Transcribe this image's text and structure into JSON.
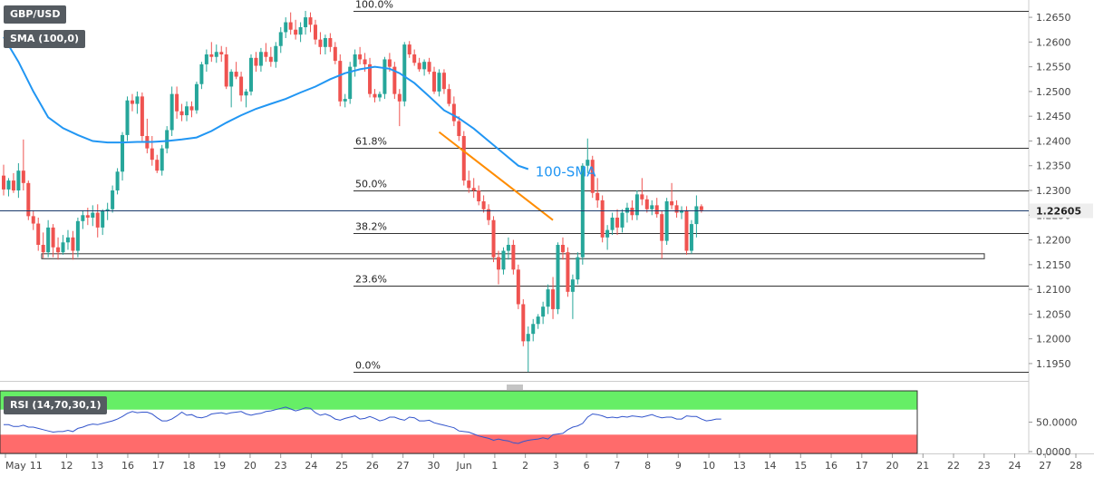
{
  "header": {
    "symbol": "GBP/USD",
    "indicator": "SMA (100,0)"
  },
  "rsi_panel": {
    "label": "RSI (14,70,30,1)",
    "overbought": 70,
    "oversold": 30,
    "ticks": [
      "50.0000",
      "0.0000"
    ]
  },
  "last_price": "1.22605",
  "colors": {
    "up": "#26a69a",
    "down": "#ef5350",
    "sma": "#2196f3",
    "trendline": "#ff8c00",
    "rsi_line": "#3355cc",
    "rsi_ob": "#66ee66",
    "rsi_os": "#ff6b6b",
    "price_tag": "#eeeeee"
  },
  "chart_data": {
    "type": "candlestick",
    "x_labels": [
      "May",
      "11",
      "12",
      "13",
      "16",
      "17",
      "18",
      "19",
      "20",
      "23",
      "24",
      "25",
      "26",
      "27",
      "30",
      "Jun",
      "1",
      "2",
      "3",
      "6",
      "7",
      "8",
      "9",
      "10",
      "13",
      "14",
      "15",
      "16",
      "17",
      "20",
      "21",
      "22",
      "23",
      "24",
      "27",
      "28"
    ],
    "y_ticks": [
      "1.2650",
      "1.2600",
      "1.2550",
      "1.2500",
      "1.2450",
      "1.2400",
      "1.2350",
      "1.2300",
      "1.2250",
      "1.2200",
      "1.2150",
      "1.2100",
      "1.2050",
      "1.2000",
      "1.1950"
    ],
    "ylim": [
      1.1915,
      1.2685
    ],
    "fibonacci": [
      {
        "label": "100.0%",
        "price": 1.2663
      },
      {
        "label": "61.8%",
        "price": 1.2386
      },
      {
        "label": "50.0%",
        "price": 1.23
      },
      {
        "label": "38.2%",
        "price": 1.2214
      },
      {
        "label": "23.6%",
        "price": 1.2108
      },
      {
        "label": "0.0%",
        "price": 1.1933
      }
    ],
    "support_zone": [
      1.2162,
      1.2172
    ],
    "sma_label": "100-SMA",
    "sma": [
      [
        0,
        1.261
      ],
      [
        3,
        1.256
      ],
      [
        6,
        1.25
      ],
      [
        9,
        1.2448
      ],
      [
        12,
        1.2426
      ],
      [
        15,
        1.2412
      ],
      [
        18,
        1.24
      ],
      [
        21,
        1.2397
      ],
      [
        24,
        1.2397
      ],
      [
        27,
        1.2398
      ],
      [
        30,
        1.2398
      ],
      [
        33,
        1.24
      ],
      [
        36,
        1.2403
      ],
      [
        39,
        1.2407
      ],
      [
        42,
        1.242
      ],
      [
        45,
        1.2437
      ],
      [
        48,
        1.2452
      ],
      [
        51,
        1.2465
      ],
      [
        54,
        1.2475
      ],
      [
        57,
        1.2485
      ],
      [
        60,
        1.2498
      ],
      [
        63,
        1.251
      ],
      [
        66,
        1.2525
      ],
      [
        69,
        1.2537
      ],
      [
        72,
        1.2545
      ],
      [
        75,
        1.255
      ],
      [
        78,
        1.2546
      ],
      [
        80,
        1.2537
      ],
      [
        83,
        1.2517
      ],
      [
        86,
        1.249
      ],
      [
        89,
        1.2462
      ],
      [
        92,
        1.2446
      ],
      [
        95,
        1.2425
      ],
      [
        98,
        1.24
      ],
      [
        101,
        1.2375
      ],
      [
        104,
        1.235
      ],
      [
        106,
        1.2343
      ]
    ],
    "trendline": [
      [
        88,
        1.2418
      ],
      [
        111,
        1.224
      ]
    ],
    "candles": [
      {
        "o": 1.233,
        "h": 1.2352,
        "l": 1.229,
        "c": 1.2302
      },
      {
        "o": 1.2302,
        "h": 1.2325,
        "l": 1.2288,
        "c": 1.232
      },
      {
        "o": 1.232,
        "h": 1.2335,
        "l": 1.2295,
        "c": 1.23
      },
      {
        "o": 1.23,
        "h": 1.2355,
        "l": 1.2285,
        "c": 1.234
      },
      {
        "o": 1.234,
        "h": 1.2403,
        "l": 1.23,
        "c": 1.2315
      },
      {
        "o": 1.2315,
        "h": 1.232,
        "l": 1.224,
        "c": 1.2248
      },
      {
        "o": 1.2248,
        "h": 1.226,
        "l": 1.222,
        "c": 1.2233
      },
      {
        "o": 1.2233,
        "h": 1.2245,
        "l": 1.2178,
        "c": 1.219
      },
      {
        "o": 1.219,
        "h": 1.2215,
        "l": 1.2163,
        "c": 1.2175
      },
      {
        "o": 1.2175,
        "h": 1.224,
        "l": 1.2165,
        "c": 1.2225
      },
      {
        "o": 1.2225,
        "h": 1.2232,
        "l": 1.2165,
        "c": 1.2185
      },
      {
        "o": 1.2185,
        "h": 1.2205,
        "l": 1.216,
        "c": 1.2175
      },
      {
        "o": 1.2175,
        "h": 1.221,
        "l": 1.217,
        "c": 1.2195
      },
      {
        "o": 1.2195,
        "h": 1.222,
        "l": 1.218,
        "c": 1.2205
      },
      {
        "o": 1.2205,
        "h": 1.2218,
        "l": 1.216,
        "c": 1.2178
      },
      {
        "o": 1.2178,
        "h": 1.2245,
        "l": 1.2165,
        "c": 1.2238
      },
      {
        "o": 1.2238,
        "h": 1.226,
        "l": 1.2222,
        "c": 1.225
      },
      {
        "o": 1.225,
        "h": 1.2265,
        "l": 1.223,
        "c": 1.2245
      },
      {
        "o": 1.2245,
        "h": 1.227,
        "l": 1.2228,
        "c": 1.2255
      },
      {
        "o": 1.2255,
        "h": 1.2272,
        "l": 1.2205,
        "c": 1.2225
      },
      {
        "o": 1.2225,
        "h": 1.2262,
        "l": 1.221,
        "c": 1.2258
      },
      {
        "o": 1.2258,
        "h": 1.2275,
        "l": 1.224,
        "c": 1.2262
      },
      {
        "o": 1.2262,
        "h": 1.231,
        "l": 1.2255,
        "c": 1.23
      },
      {
        "o": 1.23,
        "h": 1.2345,
        "l": 1.2292,
        "c": 1.2338
      },
      {
        "o": 1.2338,
        "h": 1.2418,
        "l": 1.232,
        "c": 1.2412
      },
      {
        "o": 1.2412,
        "h": 1.249,
        "l": 1.24,
        "c": 1.2482
      },
      {
        "o": 1.2482,
        "h": 1.2495,
        "l": 1.246,
        "c": 1.2475
      },
      {
        "o": 1.2475,
        "h": 1.25,
        "l": 1.2455,
        "c": 1.249
      },
      {
        "o": 1.249,
        "h": 1.2498,
        "l": 1.24,
        "c": 1.241
      },
      {
        "o": 1.241,
        "h": 1.2445,
        "l": 1.2375,
        "c": 1.2385
      },
      {
        "o": 1.2385,
        "h": 1.241,
        "l": 1.235,
        "c": 1.2362
      },
      {
        "o": 1.2362,
        "h": 1.2372,
        "l": 1.2335,
        "c": 1.234
      },
      {
        "o": 1.234,
        "h": 1.2392,
        "l": 1.233,
        "c": 1.2385
      },
      {
        "o": 1.2385,
        "h": 1.243,
        "l": 1.2375,
        "c": 1.2422
      },
      {
        "o": 1.2422,
        "h": 1.251,
        "l": 1.241,
        "c": 1.2495
      },
      {
        "o": 1.2495,
        "h": 1.251,
        "l": 1.2445,
        "c": 1.246
      },
      {
        "o": 1.246,
        "h": 1.2475,
        "l": 1.244,
        "c": 1.2452
      },
      {
        "o": 1.2452,
        "h": 1.248,
        "l": 1.244,
        "c": 1.247
      },
      {
        "o": 1.247,
        "h": 1.248,
        "l": 1.2448,
        "c": 1.2462
      },
      {
        "o": 1.2462,
        "h": 1.252,
        "l": 1.2455,
        "c": 1.2515
      },
      {
        "o": 1.2515,
        "h": 1.256,
        "l": 1.2505,
        "c": 1.2555
      },
      {
        "o": 1.2555,
        "h": 1.2585,
        "l": 1.254,
        "c": 1.2575
      },
      {
        "o": 1.2575,
        "h": 1.26,
        "l": 1.256,
        "c": 1.257
      },
      {
        "o": 1.257,
        "h": 1.2595,
        "l": 1.2558,
        "c": 1.258
      },
      {
        "o": 1.258,
        "h": 1.2592,
        "l": 1.256,
        "c": 1.2575
      },
      {
        "o": 1.2575,
        "h": 1.259,
        "l": 1.2505,
        "c": 1.251
      },
      {
        "o": 1.251,
        "h": 1.2545,
        "l": 1.2468,
        "c": 1.254
      },
      {
        "o": 1.254,
        "h": 1.256,
        "l": 1.2525,
        "c": 1.253
      },
      {
        "o": 1.253,
        "h": 1.254,
        "l": 1.248,
        "c": 1.2492
      },
      {
        "o": 1.2492,
        "h": 1.2505,
        "l": 1.2468,
        "c": 1.25
      },
      {
        "o": 1.25,
        "h": 1.2575,
        "l": 1.2492,
        "c": 1.2568
      },
      {
        "o": 1.2568,
        "h": 1.258,
        "l": 1.254,
        "c": 1.2552
      },
      {
        "o": 1.2552,
        "h": 1.2588,
        "l": 1.254,
        "c": 1.258
      },
      {
        "o": 1.258,
        "h": 1.2598,
        "l": 1.256,
        "c": 1.257
      },
      {
        "o": 1.257,
        "h": 1.259,
        "l": 1.255,
        "c": 1.256
      },
      {
        "o": 1.256,
        "h": 1.26,
        "l": 1.2548,
        "c": 1.2592
      },
      {
        "o": 1.2592,
        "h": 1.263,
        "l": 1.2578,
        "c": 1.262
      },
      {
        "o": 1.262,
        "h": 1.265,
        "l": 1.2608,
        "c": 1.264
      },
      {
        "o": 1.264,
        "h": 1.266,
        "l": 1.2615,
        "c": 1.2625
      },
      {
        "o": 1.2625,
        "h": 1.2645,
        "l": 1.2605,
        "c": 1.2615
      },
      {
        "o": 1.2615,
        "h": 1.264,
        "l": 1.26,
        "c": 1.263
      },
      {
        "o": 1.263,
        "h": 1.2663,
        "l": 1.2615,
        "c": 1.265
      },
      {
        "o": 1.265,
        "h": 1.266,
        "l": 1.262,
        "c": 1.2635
      },
      {
        "o": 1.2635,
        "h": 1.2645,
        "l": 1.2595,
        "c": 1.2605
      },
      {
        "o": 1.2605,
        "h": 1.262,
        "l": 1.2575,
        "c": 1.259
      },
      {
        "o": 1.259,
        "h": 1.2615,
        "l": 1.2575,
        "c": 1.2608
      },
      {
        "o": 1.2608,
        "h": 1.2618,
        "l": 1.258,
        "c": 1.259
      },
      {
        "o": 1.259,
        "h": 1.26,
        "l": 1.2555,
        "c": 1.2562
      },
      {
        "o": 1.2562,
        "h": 1.2575,
        "l": 1.247,
        "c": 1.248
      },
      {
        "o": 1.248,
        "h": 1.2495,
        "l": 1.2468,
        "c": 1.2485
      },
      {
        "o": 1.2485,
        "h": 1.256,
        "l": 1.2475,
        "c": 1.255
      },
      {
        "o": 1.255,
        "h": 1.2585,
        "l": 1.253,
        "c": 1.2575
      },
      {
        "o": 1.2575,
        "h": 1.259,
        "l": 1.2555,
        "c": 1.2565
      },
      {
        "o": 1.2565,
        "h": 1.2578,
        "l": 1.254,
        "c": 1.2555
      },
      {
        "o": 1.2555,
        "h": 1.2568,
        "l": 1.2488,
        "c": 1.2495
      },
      {
        "o": 1.2495,
        "h": 1.2505,
        "l": 1.2478,
        "c": 1.2488
      },
      {
        "o": 1.2488,
        "h": 1.25,
        "l": 1.248,
        "c": 1.2495
      },
      {
        "o": 1.2495,
        "h": 1.257,
        "l": 1.2485,
        "c": 1.2565
      },
      {
        "o": 1.2565,
        "h": 1.2578,
        "l": 1.254,
        "c": 1.255
      },
      {
        "o": 1.255,
        "h": 1.256,
        "l": 1.2485,
        "c": 1.2495
      },
      {
        "o": 1.2495,
        "h": 1.2505,
        "l": 1.243,
        "c": 1.248
      },
      {
        "o": 1.248,
        "h": 1.26,
        "l": 1.247,
        "c": 1.2595
      },
      {
        "o": 1.2595,
        "h": 1.2602,
        "l": 1.2568,
        "c": 1.2575
      },
      {
        "o": 1.2575,
        "h": 1.2585,
        "l": 1.2552,
        "c": 1.2558
      },
      {
        "o": 1.2558,
        "h": 1.2568,
        "l": 1.254,
        "c": 1.2545
      },
      {
        "o": 1.2545,
        "h": 1.2565,
        "l": 1.2532,
        "c": 1.256
      },
      {
        "o": 1.256,
        "h": 1.2568,
        "l": 1.2535,
        "c": 1.254
      },
      {
        "o": 1.254,
        "h": 1.255,
        "l": 1.2495,
        "c": 1.25
      },
      {
        "o": 1.25,
        "h": 1.2545,
        "l": 1.249,
        "c": 1.2538
      },
      {
        "o": 1.2538,
        "h": 1.2545,
        "l": 1.2495,
        "c": 1.2505
      },
      {
        "o": 1.2505,
        "h": 1.2515,
        "l": 1.247,
        "c": 1.2475
      },
      {
        "o": 1.2475,
        "h": 1.249,
        "l": 1.243,
        "c": 1.244
      },
      {
        "o": 1.244,
        "h": 1.245,
        "l": 1.24,
        "c": 1.241
      },
      {
        "o": 1.241,
        "h": 1.242,
        "l": 1.231,
        "c": 1.232
      },
      {
        "o": 1.232,
        "h": 1.234,
        "l": 1.2295,
        "c": 1.2305
      },
      {
        "o": 1.2305,
        "h": 1.2325,
        "l": 1.2285,
        "c": 1.23
      },
      {
        "o": 1.23,
        "h": 1.231,
        "l": 1.227,
        "c": 1.2278
      },
      {
        "o": 1.2278,
        "h": 1.229,
        "l": 1.2255,
        "c": 1.2262
      },
      {
        "o": 1.2262,
        "h": 1.2272,
        "l": 1.223,
        "c": 1.224
      },
      {
        "o": 1.224,
        "h": 1.2248,
        "l": 1.2155,
        "c": 1.2165
      },
      {
        "o": 1.2165,
        "h": 1.2178,
        "l": 1.211,
        "c": 1.214
      },
      {
        "o": 1.214,
        "h": 1.2185,
        "l": 1.213,
        "c": 1.2178
      },
      {
        "o": 1.2178,
        "h": 1.2205,
        "l": 1.216,
        "c": 1.219
      },
      {
        "o": 1.219,
        "h": 1.22,
        "l": 1.213,
        "c": 1.214
      },
      {
        "o": 1.214,
        "h": 1.215,
        "l": 1.206,
        "c": 1.207
      },
      {
        "o": 1.207,
        "h": 1.208,
        "l": 1.1985,
        "c": 1.1995
      },
      {
        "o": 1.1995,
        "h": 1.2025,
        "l": 1.1933,
        "c": 1.201
      },
      {
        "o": 1.201,
        "h": 1.204,
        "l": 1.1995,
        "c": 1.203
      },
      {
        "o": 1.203,
        "h": 1.205,
        "l": 1.202,
        "c": 1.2045
      },
      {
        "o": 1.2045,
        "h": 1.2075,
        "l": 1.203,
        "c": 1.2065
      },
      {
        "o": 1.2065,
        "h": 1.211,
        "l": 1.205,
        "c": 1.21
      },
      {
        "o": 1.21,
        "h": 1.2125,
        "l": 1.204,
        "c": 1.206
      },
      {
        "o": 1.206,
        "h": 1.2195,
        "l": 1.205,
        "c": 1.219
      },
      {
        "o": 1.219,
        "h": 1.2205,
        "l": 1.216,
        "c": 1.2175
      },
      {
        "o": 1.2175,
        "h": 1.2185,
        "l": 1.2085,
        "c": 1.2095
      },
      {
        "o": 1.2095,
        "h": 1.213,
        "l": 1.204,
        "c": 1.212
      },
      {
        "o": 1.212,
        "h": 1.2175,
        "l": 1.211,
        "c": 1.2165
      },
      {
        "o": 1.2165,
        "h": 1.2355,
        "l": 1.215,
        "c": 1.235
      },
      {
        "o": 1.235,
        "h": 1.2405,
        "l": 1.2335,
        "c": 1.2362
      },
      {
        "o": 1.2362,
        "h": 1.237,
        "l": 1.2285,
        "c": 1.2295
      },
      {
        "o": 1.2295,
        "h": 1.2325,
        "l": 1.2265,
        "c": 1.228
      },
      {
        "o": 1.228,
        "h": 1.229,
        "l": 1.2195,
        "c": 1.2205
      },
      {
        "o": 1.2205,
        "h": 1.223,
        "l": 1.218,
        "c": 1.222
      },
      {
        "o": 1.222,
        "h": 1.2255,
        "l": 1.221,
        "c": 1.2245
      },
      {
        "o": 1.2245,
        "h": 1.2262,
        "l": 1.221,
        "c": 1.2225
      },
      {
        "o": 1.2225,
        "h": 1.2262,
        "l": 1.2215,
        "c": 1.2255
      },
      {
        "o": 1.2255,
        "h": 1.2275,
        "l": 1.2235,
        "c": 1.2265
      },
      {
        "o": 1.2265,
        "h": 1.228,
        "l": 1.224,
        "c": 1.225
      },
      {
        "o": 1.225,
        "h": 1.23,
        "l": 1.224,
        "c": 1.2292
      },
      {
        "o": 1.2292,
        "h": 1.2325,
        "l": 1.227,
        "c": 1.2282
      },
      {
        "o": 1.2282,
        "h": 1.229,
        "l": 1.2255,
        "c": 1.2262
      },
      {
        "o": 1.2262,
        "h": 1.228,
        "l": 1.225,
        "c": 1.227
      },
      {
        "o": 1.227,
        "h": 1.2285,
        "l": 1.2245,
        "c": 1.2252
      },
      {
        "o": 1.2252,
        "h": 1.226,
        "l": 1.2162,
        "c": 1.2198
      },
      {
        "o": 1.2198,
        "h": 1.2285,
        "l": 1.219,
        "c": 1.2278
      },
      {
        "o": 1.2278,
        "h": 1.2315,
        "l": 1.2262,
        "c": 1.227
      },
      {
        "o": 1.227,
        "h": 1.228,
        "l": 1.2245,
        "c": 1.2255
      },
      {
        "o": 1.2255,
        "h": 1.2268,
        "l": 1.2242,
        "c": 1.226
      },
      {
        "o": 1.226,
        "h": 1.2268,
        "l": 1.217,
        "c": 1.2178
      },
      {
        "o": 1.2178,
        "h": 1.224,
        "l": 1.2172,
        "c": 1.2232
      },
      {
        "o": 1.2232,
        "h": 1.229,
        "l": 1.2205,
        "c": 1.2268
      },
      {
        "o": 1.2268,
        "h": 1.2272,
        "l": 1.2255,
        "c": 1.226
      }
    ],
    "rsi": [
      46,
      46,
      43,
      43,
      45,
      42,
      42,
      40,
      38,
      36,
      34,
      35,
      35,
      37,
      35,
      40,
      42,
      45,
      47,
      46,
      48,
      50,
      52,
      55,
      59,
      64,
      67,
      65,
      66,
      66,
      63,
      57,
      52,
      52,
      55,
      60,
      66,
      61,
      62,
      58,
      57,
      59,
      63,
      64,
      65,
      63,
      65,
      66,
      67,
      63,
      61,
      63,
      64,
      67,
      68,
      70,
      72,
      74,
      71,
      68,
      70,
      73,
      72,
      65,
      61,
      63,
      60,
      55,
      53,
      56,
      58,
      60,
      55,
      56,
      59,
      56,
      52,
      54,
      58,
      58,
      55,
      53,
      58,
      57,
      52,
      52,
      53,
      49,
      47,
      45,
      43,
      41,
      36,
      35,
      34,
      31,
      28,
      26,
      24,
      21,
      23,
      21,
      20,
      17,
      16,
      19,
      21,
      22,
      23,
      25,
      23,
      30,
      31,
      32,
      38,
      42,
      44,
      48,
      58,
      63,
      62,
      60,
      57,
      58,
      57,
      59,
      58,
      60,
      59,
      58,
      60,
      62,
      59,
      57,
      58,
      58,
      55,
      55,
      60,
      59,
      59,
      55,
      52,
      53,
      55,
      55
    ]
  }
}
